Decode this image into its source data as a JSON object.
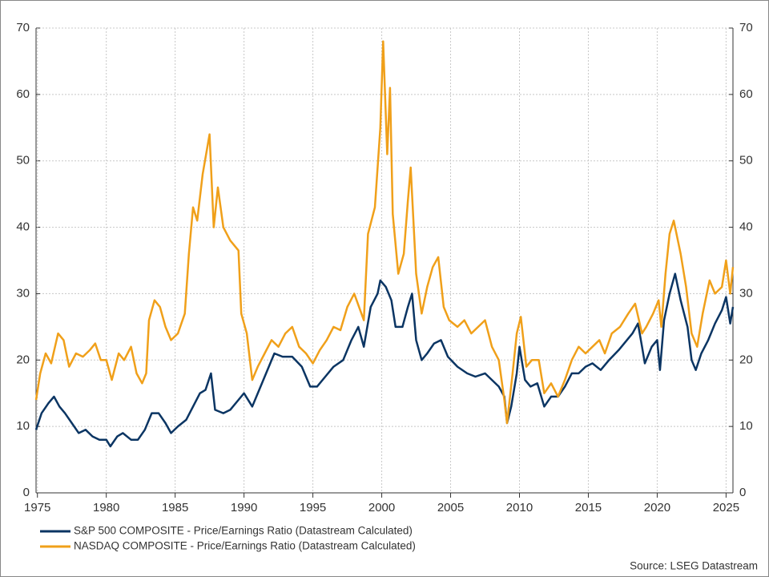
{
  "chart_data": {
    "type": "line",
    "source": "Source: LSEG Datastream",
    "xlim": [
      1974.9,
      2025.5
    ],
    "xticks": [
      1975,
      1980,
      1985,
      1990,
      1995,
      2000,
      2005,
      2010,
      2015,
      2020,
      2025
    ],
    "ylim": [
      0,
      70
    ],
    "yticks": [
      0,
      10,
      20,
      30,
      40,
      50,
      60,
      70
    ],
    "y2lim": [
      0,
      70
    ],
    "y2ticks": [
      0,
      10,
      20,
      30,
      40,
      50,
      60,
      70
    ],
    "grid": true,
    "legend": "bottom-left",
    "series": [
      {
        "name": "S&P 500 COMPOSITE - Price/Earnings Ratio (Datastream Calculated)",
        "color": "#0b3563",
        "x": [
          1974.9,
          1975.3,
          1975.8,
          1976.2,
          1976.6,
          1977,
          1977.5,
          1978,
          1978.5,
          1979,
          1979.5,
          1980,
          1980.3,
          1980.8,
          1981.2,
          1981.8,
          1982.3,
          1982.8,
          1983.3,
          1983.8,
          1984.3,
          1984.7,
          1985.2,
          1985.8,
          1986.3,
          1986.8,
          1987.2,
          1987.6,
          1987.9,
          1988.5,
          1989,
          1989.6,
          1990,
          1990.6,
          1991.2,
          1991.8,
          1992.2,
          1992.8,
          1993.5,
          1994.2,
          1994.8,
          1995.3,
          1995.9,
          1996.5,
          1997.2,
          1997.8,
          1998.3,
          1998.7,
          1999.2,
          1999.7,
          1999.9,
          2000.3,
          2000.7,
          2001,
          2001.5,
          2001.9,
          2002.2,
          2002.5,
          2002.9,
          2003.3,
          2003.8,
          2004.3,
          2004.8,
          2005.5,
          2006.2,
          2006.8,
          2007.5,
          2008,
          2008.5,
          2008.9,
          2009.1,
          2009.4,
          2009.8,
          2010,
          2010.4,
          2010.8,
          2011.3,
          2011.8,
          2012.3,
          2012.8,
          2013.3,
          2013.8,
          2014.3,
          2014.8,
          2015.3,
          2015.9,
          2016.5,
          2017.2,
          2017.8,
          2018.2,
          2018.6,
          2018.9,
          2019.1,
          2019.6,
          2020,
          2020.2,
          2020.5,
          2020.9,
          2021.3,
          2021.7,
          2022.2,
          2022.5,
          2022.8,
          2023.2,
          2023.7,
          2024.2,
          2024.7,
          2025,
          2025.3,
          2025.5
        ],
        "values": [
          9.5,
          12,
          13.5,
          14.5,
          13,
          12,
          10.5,
          9,
          9.5,
          8.5,
          8,
          8,
          7,
          8.5,
          9,
          8,
          8,
          9.5,
          12,
          12,
          10.5,
          9,
          10,
          11,
          13,
          15,
          15.5,
          18,
          12.5,
          12,
          12.5,
          14,
          15,
          13,
          16,
          19,
          21,
          20.5,
          20.5,
          19,
          16,
          16,
          17.5,
          19,
          20,
          23,
          25,
          22,
          28,
          30,
          32,
          31,
          29,
          25,
          25,
          28,
          30,
          23,
          20,
          21,
          22.5,
          23,
          20.5,
          19,
          18,
          17.5,
          18,
          17,
          16,
          14.5,
          10.5,
          13,
          18,
          22,
          17,
          16,
          16.5,
          13,
          14.5,
          14.5,
          16,
          18,
          18,
          19,
          19.5,
          18.5,
          20,
          21.5,
          23,
          24,
          25.5,
          22,
          19.5,
          22,
          23,
          18.5,
          26,
          30,
          33,
          29,
          25,
          20,
          18.5,
          21,
          23,
          25.5,
          27.5,
          29.5,
          25.5,
          28
        ]
      },
      {
        "name": "NASDAQ COMPOSITE - Price/Earnings Ratio (Datastream Calculated)",
        "color": "#f0a01a",
        "x": [
          1974.9,
          1975.2,
          1975.6,
          1976,
          1976.5,
          1976.9,
          1977.3,
          1977.8,
          1978.3,
          1978.8,
          1979.2,
          1979.6,
          1980,
          1980.4,
          1980.9,
          1981.3,
          1981.8,
          1982.2,
          1982.6,
          1982.9,
          1983.1,
          1983.5,
          1983.9,
          1984.3,
          1984.7,
          1985.2,
          1985.7,
          1986,
          1986.3,
          1986.6,
          1987,
          1987.5,
          1987.8,
          1988.1,
          1988.5,
          1989,
          1989.6,
          1989.8,
          1990.2,
          1990.6,
          1991,
          1991.5,
          1992,
          1992.5,
          1993,
          1993.5,
          1994,
          1994.5,
          1995,
          1995.5,
          1996,
          1996.5,
          1997,
          1997.5,
          1998,
          1998.7,
          1999,
          1999.5,
          1999.9,
          2000.1,
          2000.4,
          2000.6,
          2000.8,
          2001.2,
          2001.6,
          2001.9,
          2002.1,
          2002.5,
          2002.9,
          2003.3,
          2003.7,
          2004.1,
          2004.5,
          2004.9,
          2005.5,
          2006,
          2006.5,
          2007,
          2007.5,
          2008,
          2008.5,
          2008.9,
          2009.1,
          2009.5,
          2009.8,
          2010.1,
          2010.5,
          2010.9,
          2011.4,
          2011.8,
          2012.3,
          2012.8,
          2013.3,
          2013.8,
          2014.3,
          2014.8,
          2015.3,
          2015.8,
          2016.2,
          2016.7,
          2017.3,
          2017.9,
          2018.4,
          2018.9,
          2019.2,
          2019.7,
          2020.1,
          2020.3,
          2020.6,
          2020.9,
          2021.2,
          2021.7,
          2022.1,
          2022.5,
          2022.9,
          2023.3,
          2023.8,
          2024.2,
          2024.7,
          2025,
          2025.3,
          2025.5
        ],
        "values": [
          14,
          18,
          21,
          19.5,
          24,
          23,
          19,
          21,
          20.5,
          21.5,
          22.5,
          20,
          20,
          17,
          21,
          20,
          22,
          18,
          16.5,
          18,
          26,
          29,
          28,
          25,
          23,
          24,
          27,
          36,
          43,
          41,
          48,
          54,
          40,
          46,
          40,
          38,
          36.5,
          27,
          24,
          17,
          19,
          21,
          23,
          22,
          24,
          25,
          22,
          21,
          19.5,
          21.5,
          23,
          25,
          24.5,
          28,
          30,
          26,
          39,
          43,
          55,
          68,
          51,
          61,
          42,
          33,
          36,
          44,
          49,
          33,
          27,
          31,
          34,
          35.5,
          28,
          26,
          25,
          26,
          24,
          25,
          26,
          22,
          20,
          14,
          10.5,
          18,
          24,
          26.5,
          19,
          20,
          20,
          15,
          16.5,
          14.5,
          17,
          20,
          22,
          21,
          22,
          23,
          21,
          24,
          25,
          27,
          28.5,
          24,
          25,
          27,
          29,
          25,
          33,
          39,
          41,
          36,
          31,
          24,
          22,
          27,
          32,
          30,
          31,
          35,
          30,
          34
        ]
      }
    ]
  }
}
